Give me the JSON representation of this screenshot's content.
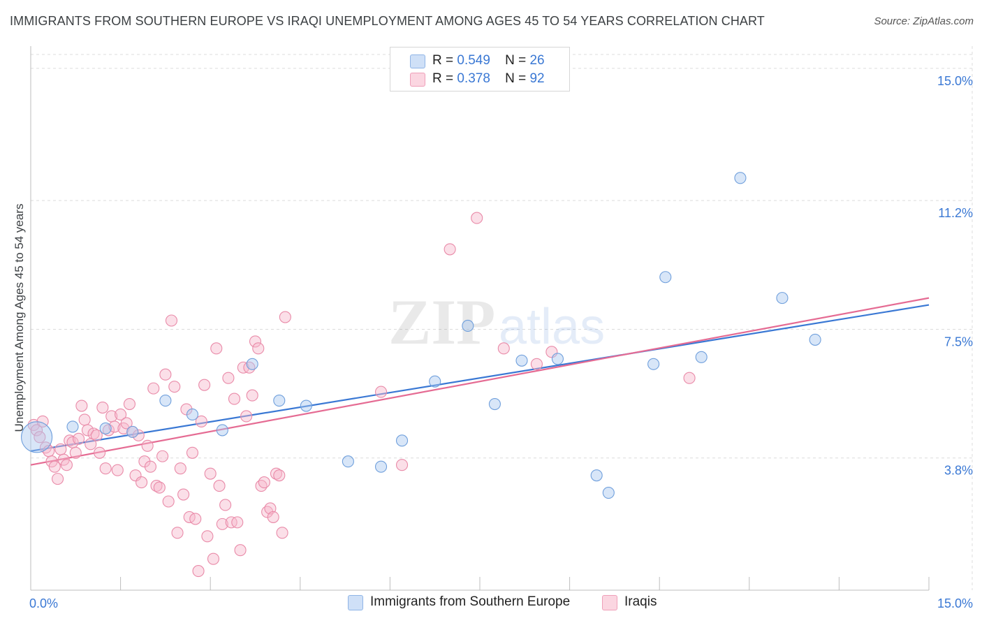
{
  "title": "IMMIGRANTS FROM SOUTHERN EUROPE VS IRAQI UNEMPLOYMENT AMONG AGES 45 TO 54 YEARS CORRELATION CHART",
  "source": "Source: ZipAtlas.com",
  "watermark": {
    "zip": "ZIP",
    "atlas": "atlas"
  },
  "legend_top": {
    "rows": [
      {
        "r_label": "R =",
        "r_value": "0.549",
        "n_label": "N =",
        "n_value": "26",
        "color": "#a9c8f0"
      },
      {
        "r_label": "R =",
        "r_value": "0.378",
        "n_label": "N =",
        "n_value": "92",
        "color": "#f6b8cb"
      }
    ]
  },
  "legend_bottom": {
    "items": [
      {
        "label": "Immigrants from Southern Europe",
        "color": "#a9c8f0"
      },
      {
        "label": "Iraqis",
        "color": "#f6b8cb"
      }
    ]
  },
  "chart_data": {
    "type": "scatter",
    "title": "IMMIGRANTS FROM SOUTHERN EUROPE VS IRAQI UNEMPLOYMENT AMONG AGES 45 TO 54 YEARS CORRELATION CHART",
    "xlabel": "",
    "ylabel": "Unemployment Among Ages 45 to 54 years",
    "xlim": [
      0,
      15
    ],
    "ylim": [
      0,
      15.4
    ],
    "x_tick_labels": [
      {
        "value": 0,
        "label": "0.0%"
      },
      {
        "value": 15,
        "label": "15.0%"
      }
    ],
    "y_tick_labels": [
      {
        "value": 3.8,
        "label": "3.8%"
      },
      {
        "value": 7.5,
        "label": "7.5%"
      },
      {
        "value": 11.2,
        "label": "11.2%"
      },
      {
        "value": 15.0,
        "label": "15.0%"
      }
    ],
    "grid": true,
    "series": [
      {
        "name": "Immigrants from Southern Europe",
        "color": "#a9c8f0",
        "stroke": "#6f9fdc",
        "trend": {
          "x": [
            0,
            15
          ],
          "y": [
            4.0,
            8.2
          ],
          "color": "#3a78d4"
        },
        "points": [
          {
            "x": 0.1,
            "y": 4.4,
            "big": true
          },
          {
            "x": 0.7,
            "y": 4.7
          },
          {
            "x": 1.25,
            "y": 4.65
          },
          {
            "x": 1.7,
            "y": 4.55
          },
          {
            "x": 2.25,
            "y": 5.45
          },
          {
            "x": 2.7,
            "y": 5.05
          },
          {
            "x": 3.2,
            "y": 4.6
          },
          {
            "x": 3.7,
            "y": 6.5
          },
          {
            "x": 4.15,
            "y": 5.45
          },
          {
            "x": 4.6,
            "y": 5.3
          },
          {
            "x": 5.3,
            "y": 3.7
          },
          {
            "x": 5.85,
            "y": 3.55
          },
          {
            "x": 6.2,
            "y": 4.3
          },
          {
            "x": 6.75,
            "y": 6.0
          },
          {
            "x": 7.3,
            "y": 7.6
          },
          {
            "x": 7.75,
            "y": 5.35
          },
          {
            "x": 8.2,
            "y": 6.6
          },
          {
            "x": 8.8,
            "y": 6.65
          },
          {
            "x": 9.45,
            "y": 3.3
          },
          {
            "x": 9.65,
            "y": 2.8
          },
          {
            "x": 10.4,
            "y": 6.5
          },
          {
            "x": 10.6,
            "y": 9.0
          },
          {
            "x": 11.2,
            "y": 6.7
          },
          {
            "x": 11.85,
            "y": 11.85
          },
          {
            "x": 12.55,
            "y": 8.4
          },
          {
            "x": 13.1,
            "y": 7.2
          }
        ]
      },
      {
        "name": "Iraqis",
        "color": "#f6b8cb",
        "stroke": "#e98aa8",
        "trend": {
          "x": [
            0,
            15
          ],
          "y": [
            3.6,
            8.4
          ],
          "color": "#e56b93"
        },
        "points": [
          {
            "x": 0.05,
            "y": 4.75
          },
          {
            "x": 0.1,
            "y": 4.6
          },
          {
            "x": 0.15,
            "y": 4.4
          },
          {
            "x": 0.2,
            "y": 4.85
          },
          {
            "x": 0.25,
            "y": 4.1
          },
          {
            "x": 0.3,
            "y": 4.0
          },
          {
            "x": 0.35,
            "y": 3.7
          },
          {
            "x": 0.4,
            "y": 3.55
          },
          {
            "x": 0.45,
            "y": 3.2
          },
          {
            "x": 0.5,
            "y": 4.05
          },
          {
            "x": 0.55,
            "y": 3.75
          },
          {
            "x": 0.6,
            "y": 3.6
          },
          {
            "x": 0.65,
            "y": 4.3
          },
          {
            "x": 0.7,
            "y": 4.25
          },
          {
            "x": 0.75,
            "y": 3.95
          },
          {
            "x": 0.8,
            "y": 4.35
          },
          {
            "x": 0.85,
            "y": 5.3
          },
          {
            "x": 0.9,
            "y": 4.9
          },
          {
            "x": 0.95,
            "y": 4.6
          },
          {
            "x": 1.0,
            "y": 4.2
          },
          {
            "x": 1.05,
            "y": 4.5
          },
          {
            "x": 1.1,
            "y": 4.45
          },
          {
            "x": 1.15,
            "y": 3.95
          },
          {
            "x": 1.2,
            "y": 5.25
          },
          {
            "x": 1.25,
            "y": 3.5
          },
          {
            "x": 1.3,
            "y": 4.6
          },
          {
            "x": 1.35,
            "y": 5.0
          },
          {
            "x": 1.4,
            "y": 4.7
          },
          {
            "x": 1.45,
            "y": 3.45
          },
          {
            "x": 1.5,
            "y": 5.05
          },
          {
            "x": 1.55,
            "y": 4.65
          },
          {
            "x": 1.6,
            "y": 4.8
          },
          {
            "x": 1.65,
            "y": 5.35
          },
          {
            "x": 1.7,
            "y": 4.55
          },
          {
            "x": 1.75,
            "y": 3.3
          },
          {
            "x": 1.8,
            "y": 4.45
          },
          {
            "x": 1.85,
            "y": 3.1
          },
          {
            "x": 1.9,
            "y": 3.7
          },
          {
            "x": 1.95,
            "y": 4.15
          },
          {
            "x": 2.0,
            "y": 3.55
          },
          {
            "x": 2.05,
            "y": 5.8
          },
          {
            "x": 2.1,
            "y": 3.0
          },
          {
            "x": 2.15,
            "y": 2.95
          },
          {
            "x": 2.2,
            "y": 3.85
          },
          {
            "x": 2.25,
            "y": 6.2
          },
          {
            "x": 2.3,
            "y": 2.55
          },
          {
            "x": 2.35,
            "y": 7.75
          },
          {
            "x": 2.4,
            "y": 5.85
          },
          {
            "x": 2.45,
            "y": 1.65
          },
          {
            "x": 2.5,
            "y": 3.5
          },
          {
            "x": 2.55,
            "y": 2.75
          },
          {
            "x": 2.6,
            "y": 5.2
          },
          {
            "x": 2.65,
            "y": 2.1
          },
          {
            "x": 2.7,
            "y": 3.95
          },
          {
            "x": 2.75,
            "y": 2.05
          },
          {
            "x": 2.8,
            "y": 0.55
          },
          {
            "x": 2.85,
            "y": 4.85
          },
          {
            "x": 2.9,
            "y": 5.9
          },
          {
            "x": 2.95,
            "y": 1.55
          },
          {
            "x": 3.0,
            "y": 3.35
          },
          {
            "x": 3.05,
            "y": 0.9
          },
          {
            "x": 3.1,
            "y": 6.95
          },
          {
            "x": 3.15,
            "y": 3.0
          },
          {
            "x": 3.2,
            "y": 1.9
          },
          {
            "x": 3.25,
            "y": 2.45
          },
          {
            "x": 3.3,
            "y": 6.1
          },
          {
            "x": 3.35,
            "y": 1.95
          },
          {
            "x": 3.4,
            "y": 5.5
          },
          {
            "x": 3.45,
            "y": 1.95
          },
          {
            "x": 3.5,
            "y": 1.15
          },
          {
            "x": 3.55,
            "y": 6.4
          },
          {
            "x": 3.6,
            "y": 5.0
          },
          {
            "x": 3.65,
            "y": 6.4
          },
          {
            "x": 3.7,
            "y": 5.6
          },
          {
            "x": 3.75,
            "y": 7.15
          },
          {
            "x": 3.8,
            "y": 6.95
          },
          {
            "x": 3.85,
            "y": 3.0
          },
          {
            "x": 3.9,
            "y": 3.1
          },
          {
            "x": 3.95,
            "y": 2.25
          },
          {
            "x": 4.0,
            "y": 2.35
          },
          {
            "x": 4.05,
            "y": 2.1
          },
          {
            "x": 4.1,
            "y": 3.35
          },
          {
            "x": 4.15,
            "y": 3.3
          },
          {
            "x": 4.2,
            "y": 1.65
          },
          {
            "x": 4.25,
            "y": 7.85
          },
          {
            "x": 5.85,
            "y": 5.7
          },
          {
            "x": 6.2,
            "y": 3.6
          },
          {
            "x": 7.0,
            "y": 9.8
          },
          {
            "x": 7.45,
            "y": 10.7
          },
          {
            "x": 7.9,
            "y": 6.95
          },
          {
            "x": 8.45,
            "y": 6.5
          },
          {
            "x": 8.7,
            "y": 6.85
          },
          {
            "x": 11.0,
            "y": 6.1
          }
        ]
      }
    ]
  }
}
